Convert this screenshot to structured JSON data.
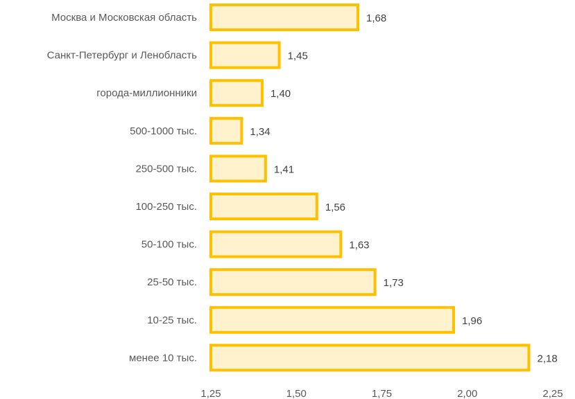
{
  "chart_data": {
    "type": "bar",
    "orientation": "horizontal",
    "categories": [
      "Москва и Московская область",
      "Санкт-Петербург и Ленобласть",
      "города-миллионники",
      "500-1000 тыс.",
      "250-500 тыс.",
      "100-250 тыс.",
      "50-100 тыс.",
      "25-50 тыс.",
      "10-25 тыс.",
      "менее 10 тыс."
    ],
    "values": [
      1.68,
      1.45,
      1.4,
      1.34,
      1.41,
      1.56,
      1.63,
      1.73,
      1.96,
      2.18
    ],
    "value_labels": [
      "1,68",
      "1,45",
      "1,40",
      "1,34",
      "1,41",
      "1,56",
      "1,63",
      "1,73",
      "1,96",
      "2,18"
    ],
    "xlim": [
      1.25,
      2.25
    ],
    "x_ticks": [
      1.25,
      1.5,
      1.75,
      2.0,
      2.25
    ],
    "x_tick_labels": [
      "1,25",
      "1,50",
      "1,75",
      "2,00",
      "2,25"
    ],
    "grid": false,
    "legend": "none",
    "colors": {
      "bar_fill": "#FFF2CC",
      "bar_stroke": "#FFC000"
    }
  }
}
